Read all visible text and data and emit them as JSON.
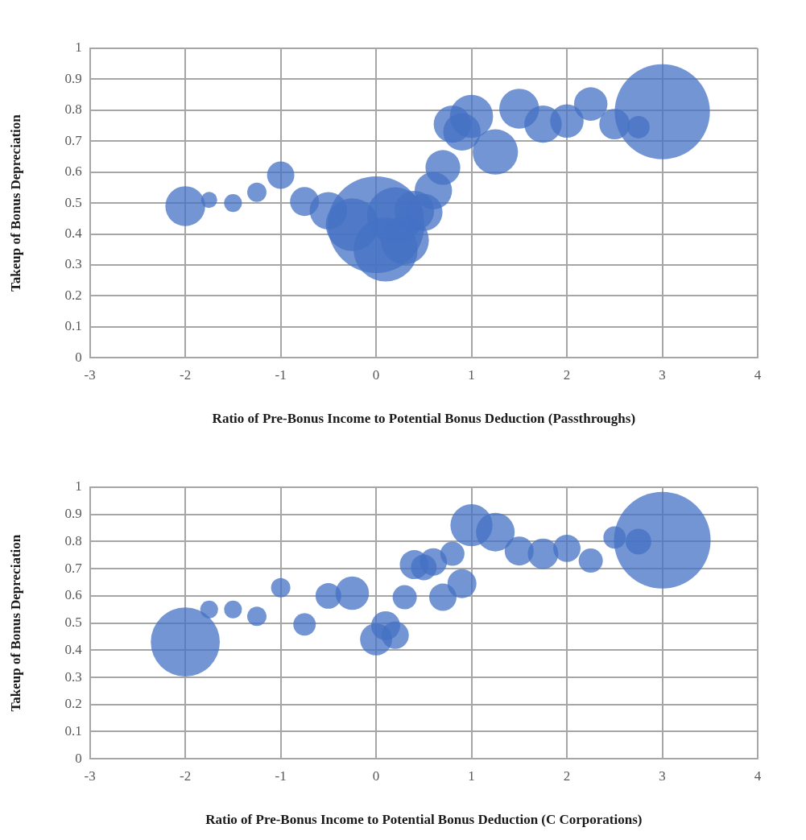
{
  "chart_data": [
    {
      "type": "bubble",
      "xlabel": "Ratio of Pre-Bonus Income to Potential Bonus Deduction (Passthroughs)",
      "ylabel": "Takeup of Bonus Depreciation",
      "color": "#4472c4",
      "grid": true,
      "x": [
        -2,
        -1.75,
        -1.5,
        -1.25,
        -1,
        -0.75,
        -0.5,
        -0.25,
        0,
        0.1,
        0.2,
        0.3,
        0.4,
        0.5,
        0.6,
        0.7,
        0.8,
        0.9,
        1,
        1.25,
        1.5,
        1.75,
        2,
        2.25,
        2.5,
        2.75,
        3
      ],
      "values": [
        0.49,
        0.51,
        0.5,
        0.535,
        0.59,
        0.505,
        0.475,
        0.43,
        0.43,
        0.35,
        0.46,
        0.38,
        0.475,
        0.47,
        0.54,
        0.615,
        0.755,
        0.73,
        0.78,
        0.665,
        0.805,
        0.755,
        0.765,
        0.82,
        0.755,
        0.745,
        0.795
      ],
      "sizes": [
        0.17,
        0.028,
        0.034,
        0.04,
        0.08,
        0.09,
        0.15,
        0.3,
        1,
        0.44,
        0.34,
        0.25,
        0.17,
        0.15,
        0.15,
        0.13,
        0.15,
        0.15,
        0.2,
        0.22,
        0.17,
        0.15,
        0.12,
        0.12,
        0.1,
        0.054,
        0.97
      ],
      "xlim": [
        -3,
        4
      ],
      "xticks": [
        -3,
        -2,
        -1,
        0,
        1,
        2,
        3,
        4
      ],
      "ylim": [
        0,
        1
      ],
      "yticks": [
        0,
        0.1,
        0.2,
        0.3,
        0.4,
        0.5,
        0.6,
        0.7,
        0.8,
        0.9,
        1
      ]
    },
    {
      "type": "bubble",
      "xlabel": "Ratio of Pre-Bonus Income to Potential Bonus Deduction (C Corporations)",
      "ylabel": "Takeup of Bonus Depreciation",
      "color": "#4472c4",
      "grid": true,
      "x": [
        -2,
        -1.75,
        -1.5,
        -1.25,
        -1,
        -0.75,
        -0.5,
        -0.25,
        0,
        0.1,
        0.2,
        0.3,
        0.4,
        0.5,
        0.6,
        0.7,
        0.8,
        0.9,
        1,
        1.25,
        1.5,
        1.75,
        2,
        2.25,
        2.5,
        2.75,
        3
      ],
      "values": [
        0.43,
        0.55,
        0.55,
        0.525,
        0.63,
        0.495,
        0.6,
        0.61,
        0.44,
        0.49,
        0.455,
        0.595,
        0.715,
        0.705,
        0.725,
        0.595,
        0.755,
        0.645,
        0.86,
        0.835,
        0.765,
        0.755,
        0.775,
        0.73,
        0.815,
        0.8,
        0.805
      ],
      "sizes": [
        0.51,
        0.034,
        0.034,
        0.04,
        0.04,
        0.054,
        0.071,
        0.12,
        0.11,
        0.09,
        0.08,
        0.0625,
        0.09,
        0.071,
        0.08,
        0.08,
        0.0625,
        0.09,
        0.19,
        0.16,
        0.09,
        0.1,
        0.08,
        0.0625,
        0.054,
        0.071,
        1
      ],
      "xlim": [
        -3,
        4
      ],
      "xticks": [
        -3,
        -2,
        -1,
        0,
        1,
        2,
        3,
        4
      ],
      "ylim": [
        0,
        1
      ],
      "yticks": [
        0,
        0.1,
        0.2,
        0.3,
        0.4,
        0.5,
        0.6,
        0.7,
        0.8,
        0.9,
        1
      ]
    }
  ]
}
